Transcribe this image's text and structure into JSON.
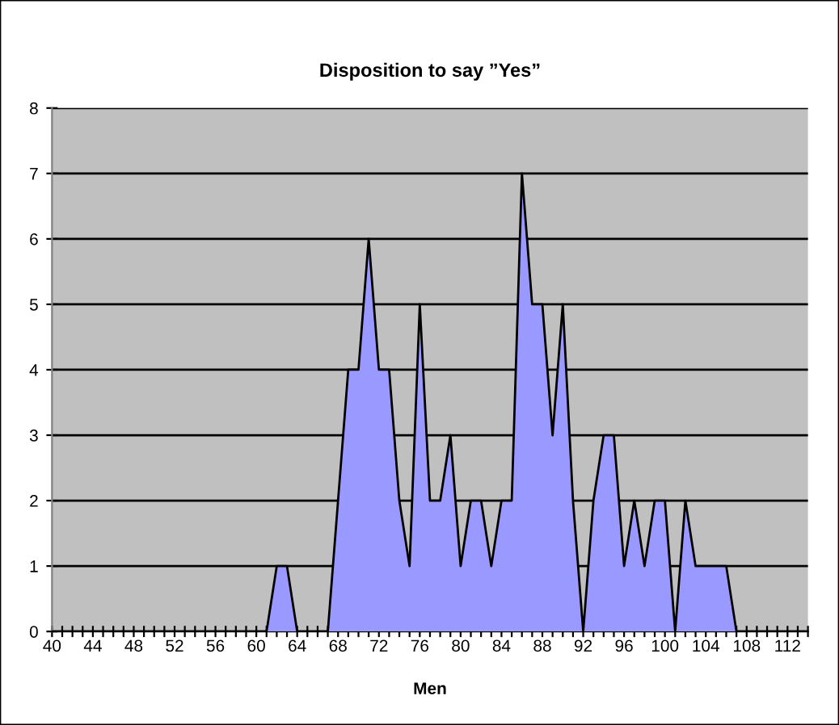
{
  "chart_data": {
    "type": "area",
    "title": "Disposition to say ”Yes”",
    "xlabel": "Men",
    "categories": [
      "40",
      null,
      null,
      null,
      "44",
      null,
      null,
      null,
      "48",
      null,
      null,
      null,
      "52",
      null,
      null,
      null,
      "56",
      null,
      null,
      null,
      "60",
      null,
      null,
      null,
      "64",
      null,
      null,
      null,
      "68",
      null,
      null,
      null,
      "72",
      null,
      null,
      null,
      "76",
      null,
      null,
      null,
      "80",
      null,
      null,
      null,
      "84",
      null,
      null,
      null,
      "88",
      null,
      null,
      null,
      "92",
      null,
      null,
      null,
      "96",
      null,
      null,
      null,
      "100",
      null,
      null,
      null,
      "104",
      null,
      null,
      null,
      "108",
      null,
      null,
      null,
      "112",
      null,
      null
    ],
    "series": [
      {
        "color": "#9999ff",
        "values": [
          0,
          0,
          0,
          0,
          0,
          0,
          0,
          0,
          0,
          0,
          0,
          0,
          0,
          0,
          0,
          0,
          0,
          0,
          0,
          0,
          0,
          0,
          1,
          1,
          0,
          0,
          0,
          0,
          2,
          4,
          4,
          6,
          4,
          4,
          2,
          1,
          5,
          2,
          2,
          3,
          1,
          2,
          2,
          1,
          2,
          2,
          7,
          5,
          5,
          3,
          5,
          2,
          0,
          2,
          3,
          3,
          1,
          2,
          1,
          2,
          2,
          0,
          2,
          1,
          1,
          1,
          1,
          0,
          0,
          0,
          0,
          0,
          0,
          0,
          0
        ]
      }
    ],
    "ylim": [
      0,
      8
    ],
    "yticks": [
      0,
      1,
      2,
      3,
      4,
      5,
      6,
      7,
      8
    ],
    "grid": "y",
    "legend": false
  }
}
